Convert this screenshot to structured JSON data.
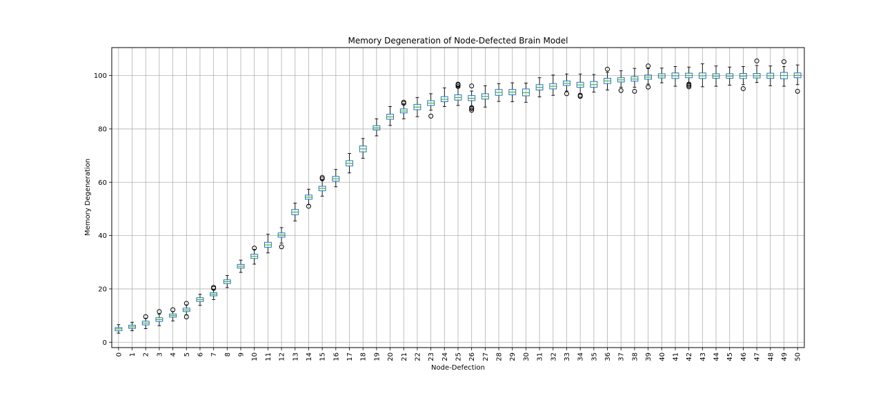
{
  "chart_data": {
    "type": "box",
    "title": "Memory Degeneration of Node-Defected Brain Model",
    "xlabel": "Node-Defection",
    "ylabel": "Memory Degeneration",
    "ylim": [
      -2,
      110.5
    ],
    "yticks": [
      0,
      20,
      40,
      60,
      80,
      100
    ],
    "grid": true,
    "colors": {
      "box": "#1f77b4",
      "median": "#2ca02c",
      "whisker": "#000000",
      "grid": "#b0b0b0"
    },
    "categories": [
      "0",
      "1",
      "2",
      "3",
      "4",
      "5",
      "6",
      "7",
      "8",
      "9",
      "10",
      "11",
      "12",
      "13",
      "14",
      "15",
      "16",
      "17",
      "18",
      "19",
      "20",
      "21",
      "22",
      "23",
      "24",
      "25",
      "26",
      "27",
      "28",
      "29",
      "30",
      "31",
      "32",
      "33",
      "34",
      "35",
      "36",
      "37",
      "38",
      "39",
      "40",
      "41",
      "42",
      "43",
      "44",
      "45",
      "46",
      "47",
      "48",
      "49",
      "50"
    ],
    "boxes": [
      {
        "q1": 4.3,
        "median": 5.0,
        "q3": 5.5,
        "whislo": 3.4,
        "whishi": 6.6,
        "fliers": []
      },
      {
        "q1": 5.2,
        "median": 5.8,
        "q3": 6.4,
        "whislo": 4.3,
        "whishi": 7.5,
        "fliers": []
      },
      {
        "q1": 6.5,
        "median": 7.2,
        "q3": 7.9,
        "whislo": 5.1,
        "whishi": 9.0,
        "fliers": [
          9.6
        ]
      },
      {
        "q1": 7.8,
        "median": 8.5,
        "q3": 9.2,
        "whislo": 6.2,
        "whishi": 10.5,
        "fliers": [
          11.5
        ]
      },
      {
        "q1": 9.4,
        "median": 10.0,
        "q3": 10.6,
        "whislo": 8.0,
        "whishi": 11.5,
        "fliers": [
          12.2
        ]
      },
      {
        "q1": 11.5,
        "median": 12.1,
        "q3": 12.8,
        "whislo": 10.3,
        "whishi": 14.0,
        "fliers": [
          14.6,
          9.5
        ]
      },
      {
        "q1": 15.3,
        "median": 16.0,
        "q3": 16.7,
        "whislo": 13.8,
        "whishi": 18.0,
        "fliers": []
      },
      {
        "q1": 17.4,
        "median": 18.0,
        "q3": 18.6,
        "whislo": 16.0,
        "whishi": 19.8,
        "fliers": [
          20.2,
          20.6
        ]
      },
      {
        "q1": 22.0,
        "median": 22.7,
        "q3": 23.4,
        "whislo": 20.5,
        "whishi": 25.0,
        "fliers": []
      },
      {
        "q1": 27.8,
        "median": 28.5,
        "q3": 29.2,
        "whislo": 26.2,
        "whishi": 30.8,
        "fliers": []
      },
      {
        "q1": 31.4,
        "median": 32.2,
        "q3": 33.0,
        "whislo": 29.3,
        "whishi": 34.8,
        "fliers": [
          35.3
        ]
      },
      {
        "q1": 35.6,
        "median": 36.5,
        "q3": 37.5,
        "whislo": 33.5,
        "whishi": 40.5,
        "fliers": []
      },
      {
        "q1": 39.4,
        "median": 40.2,
        "q3": 41.0,
        "whislo": 37.2,
        "whishi": 43.0,
        "fliers": [
          35.8
        ]
      },
      {
        "q1": 47.8,
        "median": 48.8,
        "q3": 49.8,
        "whislo": 45.5,
        "whishi": 52.2,
        "fliers": []
      },
      {
        "q1": 53.6,
        "median": 54.4,
        "q3": 55.2,
        "whislo": 51.6,
        "whishi": 57.4,
        "fliers": [
          51.0
        ]
      },
      {
        "q1": 56.8,
        "median": 57.7,
        "q3": 58.5,
        "whislo": 54.8,
        "whishi": 60.8,
        "fliers": [
          61.3,
          61.8
        ]
      },
      {
        "q1": 60.4,
        "median": 61.3,
        "q3": 62.2,
        "whislo": 58.3,
        "whishi": 64.8,
        "fliers": []
      },
      {
        "q1": 66.1,
        "median": 67.1,
        "q3": 68.1,
        "whislo": 63.5,
        "whishi": 70.8,
        "fliers": []
      },
      {
        "q1": 71.4,
        "median": 72.5,
        "q3": 73.6,
        "whislo": 69.0,
        "whishi": 76.4,
        "fliers": []
      },
      {
        "q1": 79.6,
        "median": 80.4,
        "q3": 81.2,
        "whislo": 77.4,
        "whishi": 83.8,
        "fliers": []
      },
      {
        "q1": 83.6,
        "median": 84.5,
        "q3": 85.5,
        "whislo": 81.3,
        "whishi": 88.4,
        "fliers": []
      },
      {
        "q1": 86.0,
        "median": 86.7,
        "q3": 87.5,
        "whislo": 83.8,
        "whishi": 89.4,
        "fliers": [
          89.6,
          90.0
        ]
      },
      {
        "q1": 87.2,
        "median": 88.2,
        "q3": 89.2,
        "whislo": 84.6,
        "whishi": 91.8,
        "fliers": []
      },
      {
        "q1": 88.8,
        "median": 89.7,
        "q3": 90.6,
        "whislo": 87.0,
        "whishi": 93.2,
        "fliers": [
          84.8
        ]
      },
      {
        "q1": 90.2,
        "median": 91.1,
        "q3": 92.1,
        "whislo": 88.4,
        "whishi": 95.4,
        "fliers": []
      },
      {
        "q1": 90.8,
        "median": 91.8,
        "q3": 92.8,
        "whislo": 88.8,
        "whishi": 95.6,
        "fliers": [
          95.9,
          96.5,
          96.8
        ]
      },
      {
        "q1": 90.6,
        "median": 91.5,
        "q3": 92.5,
        "whislo": 88.3,
        "whishi": 94.2,
        "fliers": [
          87.0,
          87.6,
          88.0,
          96.1
        ]
      },
      {
        "q1": 91.2,
        "median": 92.2,
        "q3": 93.2,
        "whislo": 88.2,
        "whishi": 96.2,
        "fliers": []
      },
      {
        "q1": 92.6,
        "median": 93.7,
        "q3": 94.8,
        "whislo": 90.3,
        "whishi": 97.0,
        "fliers": []
      },
      {
        "q1": 92.8,
        "median": 93.8,
        "q3": 94.8,
        "whislo": 90.2,
        "whishi": 97.3,
        "fliers": []
      },
      {
        "q1": 92.4,
        "median": 93.6,
        "q3": 95.0,
        "whislo": 90.0,
        "whishi": 97.2,
        "fliers": []
      },
      {
        "q1": 94.6,
        "median": 95.6,
        "q3": 96.6,
        "whislo": 92.0,
        "whishi": 99.2,
        "fliers": []
      },
      {
        "q1": 95.0,
        "median": 96.0,
        "q3": 97.0,
        "whislo": 92.6,
        "whishi": 100.2,
        "fliers": []
      },
      {
        "q1": 96.3,
        "median": 97.1,
        "q3": 98.0,
        "whislo": 94.2,
        "whishi": 100.6,
        "fliers": [
          93.2
        ]
      },
      {
        "q1": 95.6,
        "median": 96.5,
        "q3": 97.5,
        "whislo": 93.3,
        "whishi": 100.6,
        "fliers": [
          92.2,
          92.6
        ]
      },
      {
        "q1": 95.6,
        "median": 96.6,
        "q3": 97.8,
        "whislo": 93.8,
        "whishi": 100.4,
        "fliers": []
      },
      {
        "q1": 97.0,
        "median": 98.0,
        "q3": 99.0,
        "whislo": 94.6,
        "whishi": 101.2,
        "fliers": [
          102.4
        ]
      },
      {
        "q1": 97.6,
        "median": 98.4,
        "q3": 99.2,
        "whislo": 95.6,
        "whishi": 101.8,
        "fliers": [
          94.4
        ]
      },
      {
        "q1": 97.9,
        "median": 98.7,
        "q3": 99.6,
        "whislo": 95.6,
        "whishi": 102.7,
        "fliers": [
          94.1
        ]
      },
      {
        "q1": 98.6,
        "median": 99.4,
        "q3": 100.2,
        "whislo": 96.8,
        "whishi": 102.6,
        "fliers": [
          95.7,
          103.6
        ]
      },
      {
        "q1": 99.1,
        "median": 99.9,
        "q3": 100.7,
        "whislo": 97.3,
        "whishi": 102.8,
        "fliers": []
      },
      {
        "q1": 98.9,
        "median": 99.9,
        "q3": 101.0,
        "whislo": 96.0,
        "whishi": 103.4,
        "fliers": []
      },
      {
        "q1": 99.2,
        "median": 100.0,
        "q3": 100.9,
        "whislo": 97.2,
        "whishi": 103.2,
        "fliers": [
          95.8,
          96.3,
          96.8
        ]
      },
      {
        "q1": 98.9,
        "median": 99.9,
        "q3": 101.0,
        "whislo": 95.8,
        "whishi": 104.4,
        "fliers": []
      },
      {
        "q1": 99.0,
        "median": 99.8,
        "q3": 100.7,
        "whislo": 96.0,
        "whishi": 103.6,
        "fliers": []
      },
      {
        "q1": 99.0,
        "median": 99.8,
        "q3": 100.7,
        "whislo": 96.4,
        "whishi": 103.2,
        "fliers": []
      },
      {
        "q1": 98.9,
        "median": 99.8,
        "q3": 100.8,
        "whislo": 96.6,
        "whishi": 103.4,
        "fliers": [
          95.1
        ]
      },
      {
        "q1": 99.1,
        "median": 99.9,
        "q3": 100.8,
        "whislo": 97.4,
        "whishi": 103.8,
        "fliers": [
          105.5
        ]
      },
      {
        "q1": 99.0,
        "median": 99.9,
        "q3": 100.9,
        "whislo": 96.2,
        "whishi": 103.6,
        "fliers": []
      },
      {
        "q1": 98.8,
        "median": 100.0,
        "q3": 101.2,
        "whislo": 96.0,
        "whishi": 103.4,
        "fliers": [
          105.2
        ]
      },
      {
        "q1": 99.2,
        "median": 100.1,
        "q3": 101.0,
        "whislo": 96.6,
        "whishi": 104.0,
        "fliers": [
          94.1
        ]
      }
    ]
  }
}
